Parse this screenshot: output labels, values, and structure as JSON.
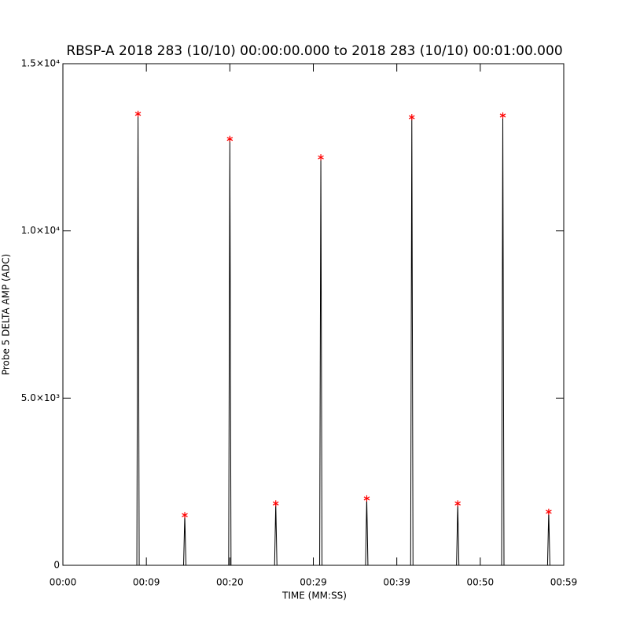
{
  "chart_data": {
    "type": "spike",
    "title": "RBSP-A 2018 283 (10/10) 00:00:00.000 to 2018 283 (10/10) 00:01:00.000",
    "xlabel": "TIME (MM:SS)",
    "ylabel": "Probe 5 DELTA AMP (ADC)",
    "xlim": [
      0,
      60
    ],
    "xticks": [
      {
        "value": 0,
        "label": "00:00"
      },
      {
        "value": 10,
        "label": "00:09"
      },
      {
        "value": 20,
        "label": "00:20"
      },
      {
        "value": 30,
        "label": "00:29"
      },
      {
        "value": 40,
        "label": "00:39"
      },
      {
        "value": 50,
        "label": "00:50"
      },
      {
        "value": 60,
        "label": "00:59"
      }
    ],
    "ylim": [
      0,
      15000
    ],
    "yticks": [
      0,
      {
        "value": 5000,
        "label": "5.0×10³"
      },
      {
        "value": 10000,
        "label": "1.0×10⁴"
      },
      {
        "value": 15000,
        "label": "1.5×10⁴"
      }
    ],
    "series": [
      {
        "color": "#000000",
        "marker_color": "#ff0000",
        "x": [
          9.0,
          14.6,
          20.0,
          25.5,
          30.9,
          36.4,
          41.8,
          47.3,
          52.7,
          58.2
        ],
        "values": [
          13500,
          1500,
          12750,
          1850,
          12200,
          2000,
          13400,
          1850,
          13450,
          1600
        ]
      }
    ]
  }
}
